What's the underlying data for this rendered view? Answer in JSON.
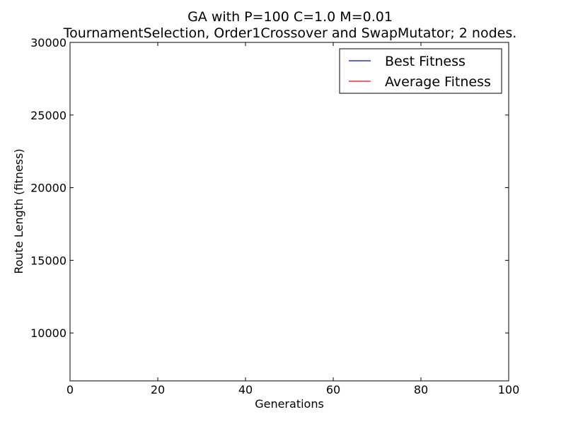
{
  "chart_data": {
    "type": "line",
    "title": "GA with P=100 C=1.0 M=0.01",
    "subtitle": "TournamentSelection, Order1Crossover and SwapMutator; 2 nodes.",
    "xlabel": "Generations",
    "ylabel": "Route Length (fitness)",
    "xlim": [
      0,
      100
    ],
    "ylim": [
      6700,
      30000
    ],
    "xticks": [
      0,
      20,
      40,
      60,
      80,
      100
    ],
    "yticks": [
      10000,
      15000,
      20000,
      25000,
      30000
    ],
    "grid": false,
    "legend_position": "top-right",
    "series": [
      {
        "name": "Best Fitness",
        "color": "#0000ff",
        "x": [],
        "y": []
      },
      {
        "name": "Average Fitness",
        "color": "#ff0000",
        "x": [],
        "y": []
      }
    ]
  }
}
